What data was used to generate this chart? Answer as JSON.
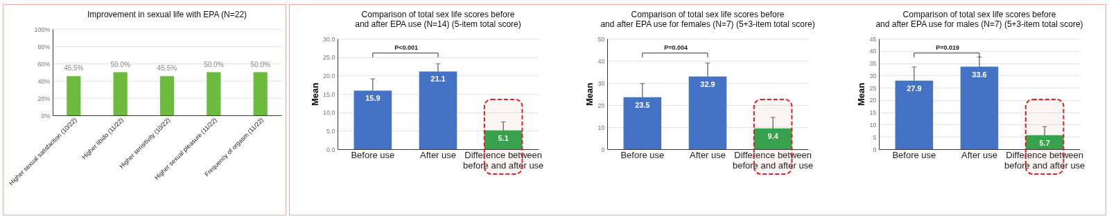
{
  "chart_data": [
    {
      "type": "bar",
      "title": "Improvement in sexual life with EPA (N=22)",
      "categories": [
        "Higher sexual satisfaction (10/22)",
        "Higher libido (11/22)",
        "Higher sensitivity (10/22)",
        "Higher sexual pleasure (11/22)",
        "Frequency of orgasm (11/22)"
      ],
      "values": [
        45.5,
        50.0,
        45.5,
        50.0,
        50.0
      ],
      "value_labels": [
        "45.5%",
        "50.0%",
        "45.5%",
        "50.0%",
        "50.0%"
      ],
      "colors": [
        "#6cbb3c",
        "#6cbb3c",
        "#6cbb3c",
        "#6cbb3c",
        "#6cbb3c"
      ],
      "ylim": [
        0,
        100
      ],
      "yticks": [
        {
          "value": 0,
          "label": "0%"
        },
        {
          "value": 20,
          "label": "20%"
        },
        {
          "value": 40,
          "label": "40%"
        },
        {
          "value": 60,
          "label": "60%"
        },
        {
          "value": 80,
          "label": "80%"
        },
        {
          "value": 100,
          "label": "100%"
        }
      ],
      "grid": "y"
    },
    {
      "type": "bar",
      "title": "Comparison of total sex life scores before and after EPA use (N=14) (5-item total score)",
      "ylabel": "Mean",
      "categories": [
        "Before use",
        "After use",
        "Difference between before and after use"
      ],
      "values": [
        15.9,
        21.1,
        5.1
      ],
      "colors": [
        "#4472c4",
        "#4472c4",
        "#2fa84f"
      ],
      "errors": [
        [
          15.9,
          19.1
        ],
        [
          21.1,
          23.2
        ],
        [
          5.1,
          7.4
        ]
      ],
      "data_labels": true,
      "ylim": [
        0,
        30
      ],
      "yticks": [
        {
          "value": 0,
          "label": "0.0"
        },
        {
          "value": 5,
          "label": "5.0"
        },
        {
          "value": 10,
          "label": "10.0"
        },
        {
          "value": 15,
          "label": "15.0"
        },
        {
          "value": 20,
          "label": "20.0"
        },
        {
          "value": 25,
          "label": "25.0"
        },
        {
          "value": 30,
          "label": "30.0"
        }
      ],
      "grid": "y",
      "annotations": [
        "P<0.001"
      ],
      "bands": [
        {
          "axis": "x",
          "from": "Difference between before and after use",
          "to": "Difference between before and after use",
          "color": "#e02020"
        }
      ]
    },
    {
      "type": "bar",
      "title": "Comparison of total sex life scores before and after EPA use for females (N=7) (5+3-item total score)",
      "ylabel": "Mean",
      "categories": [
        "Before use",
        "After use",
        "Difference between before and after use"
      ],
      "values": [
        23.5,
        32.9,
        9.4
      ],
      "colors": [
        "#4472c4",
        "#4472c4",
        "#2fa84f"
      ],
      "errors": [
        [
          23.5,
          29.7
        ],
        [
          32.9,
          39.0
        ],
        [
          9.4,
          14.4
        ]
      ],
      "data_labels": true,
      "ylim": [
        0,
        50
      ],
      "yticks": [
        0,
        10,
        20,
        30,
        40,
        50
      ],
      "grid": "y",
      "annotations": [
        "P=0.004"
      ],
      "bands": [
        {
          "axis": "x",
          "from": "Difference between before and after use",
          "to": "Difference between before and after use",
          "color": "#e02020"
        }
      ]
    },
    {
      "type": "bar",
      "title": "Comparison of total sex life scores before and after EPA use for males (N=7) (5+3-item total score)",
      "ylabel": "Mean",
      "categories": [
        "Before use",
        "After use",
        "Difference between before and after use"
      ],
      "values": [
        27.9,
        33.6,
        5.7
      ],
      "colors": [
        "#4472c4",
        "#4472c4",
        "#2fa84f"
      ],
      "errors": [
        [
          27.9,
          33.5
        ],
        [
          33.6,
          37.5
        ],
        [
          5.7,
          9.2
        ]
      ],
      "data_labels": true,
      "ylim": [
        0,
        45
      ],
      "yticks": [
        0,
        5,
        10,
        15,
        20,
        25,
        30,
        35,
        40,
        45
      ],
      "grid": "y",
      "annotations": [
        "P=0.019"
      ],
      "bands": [
        {
          "axis": "x",
          "from": "Difference between before and after use",
          "to": "Difference between before and after use",
          "color": "#e02020"
        }
      ]
    }
  ]
}
